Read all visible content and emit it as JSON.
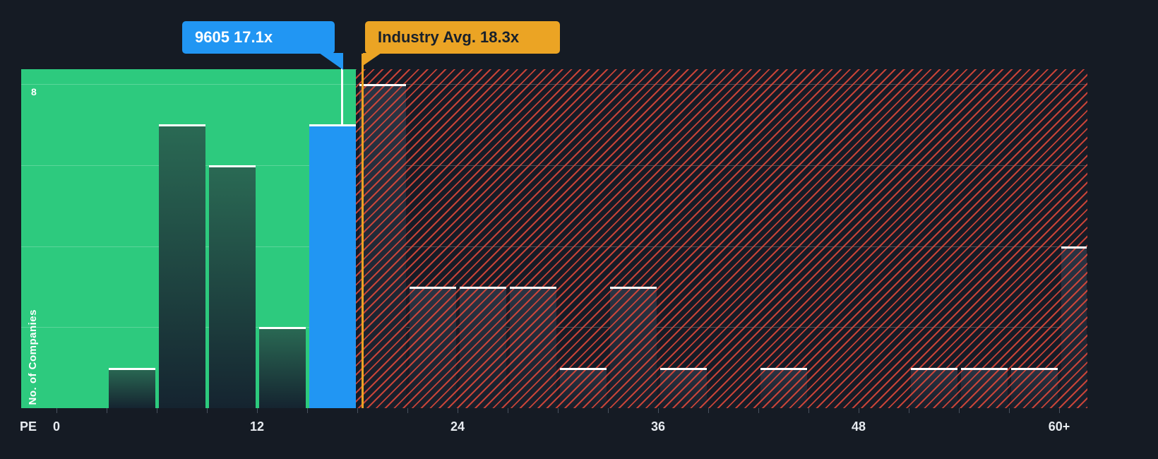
{
  "chart_data": {
    "type": "bar",
    "subtype": "histogram",
    "title": "",
    "xlabel": "PE",
    "ylabel": "No. of Companies",
    "x_ticks": [
      "0",
      "12",
      "24",
      "36",
      "48",
      "60+"
    ],
    "x_tick_values": [
      0,
      12,
      24,
      36,
      48,
      60
    ],
    "y_tick_label": "8",
    "y_gridlines": [
      2,
      4,
      6,
      8
    ],
    "ylim": [
      0,
      8.4
    ],
    "xlim": [
      0,
      63
    ],
    "bin_width": 3,
    "bins": [
      {
        "start": 0,
        "count": 0
      },
      {
        "start": 3,
        "count": 1
      },
      {
        "start": 6,
        "count": 7
      },
      {
        "start": 9,
        "count": 6
      },
      {
        "start": 12,
        "count": 2
      },
      {
        "start": 15,
        "count": 7,
        "highlight": true
      },
      {
        "start": 18,
        "count": 8
      },
      {
        "start": 21,
        "count": 3
      },
      {
        "start": 24,
        "count": 3
      },
      {
        "start": 27,
        "count": 3
      },
      {
        "start": 30,
        "count": 1
      },
      {
        "start": 33,
        "count": 3
      },
      {
        "start": 36,
        "count": 1
      },
      {
        "start": 39,
        "count": 0
      },
      {
        "start": 42,
        "count": 1
      },
      {
        "start": 45,
        "count": 0
      },
      {
        "start": 48,
        "count": 0
      },
      {
        "start": 51,
        "count": 1
      },
      {
        "start": 54,
        "count": 1
      },
      {
        "start": 57,
        "count": 1
      },
      {
        "start": 60,
        "count": 4,
        "last": true
      }
    ],
    "company": {
      "ticker": "9605",
      "pe_label": "17.1x",
      "label": "9605 17.1x",
      "value": 17.1
    },
    "industry": {
      "label": "Industry Avg. 18.3x",
      "value": 18.3
    },
    "zones": {
      "below_avg_zone_max_pe": 18,
      "above_avg_zone_min_pe": 18
    },
    "grid": true,
    "legend_position": "none"
  },
  "colors": {
    "background": "#151b24",
    "company_blue": "#2196f3",
    "industry_yellow": "#eba424",
    "zone_green": "#2dca7e",
    "hatch_red": "#e64a3a",
    "bar_cap_white": "#ffffff"
  }
}
